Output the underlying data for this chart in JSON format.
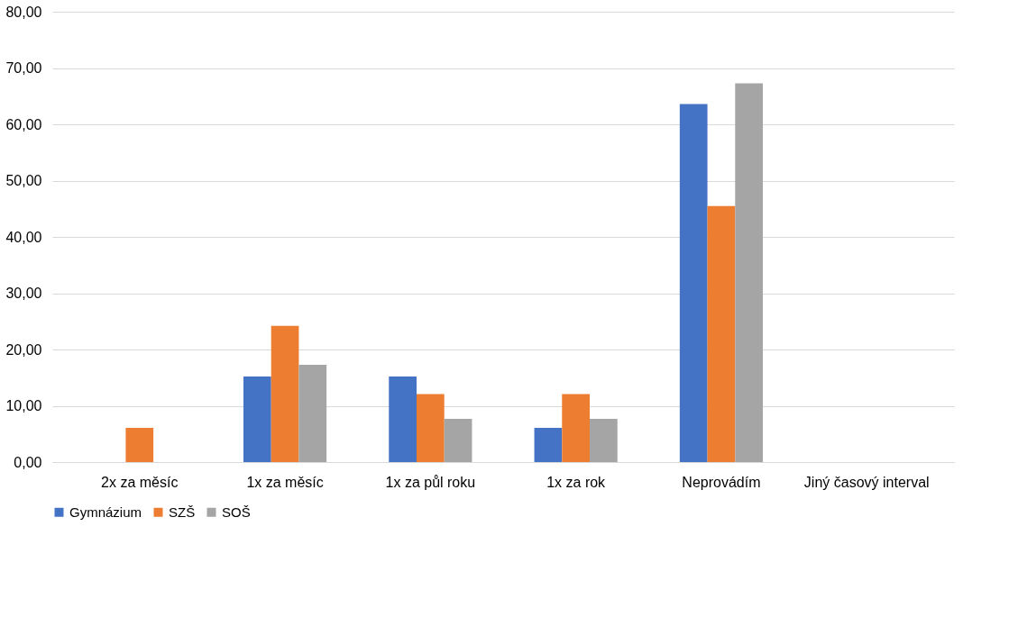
{
  "chart_data": {
    "type": "bar",
    "categories": [
      "2x za měsíc",
      "1x za měsíc",
      "1x za půl roku",
      "1x za rok",
      "Neprovádím",
      "Jiný časový interval"
    ],
    "series": [
      {
        "name": "Gymnázium",
        "color": "#4472c4",
        "values": [
          0,
          15.2,
          15.2,
          6.1,
          63.6,
          0
        ]
      },
      {
        "name": "SZŠ",
        "color": "#ed7d31",
        "values": [
          6.1,
          24.2,
          12.1,
          12.1,
          45.5,
          0
        ]
      },
      {
        "name": "SOŠ",
        "color": "#a5a5a5",
        "values": [
          0,
          17.3,
          7.7,
          7.7,
          67.3,
          0
        ]
      }
    ],
    "ylim": [
      0,
      80
    ],
    "yticks": [
      {
        "value": 0,
        "label": "0,00"
      },
      {
        "value": 10,
        "label": "10,00"
      },
      {
        "value": 20,
        "label": "20,00"
      },
      {
        "value": 30,
        "label": "30,00"
      },
      {
        "value": 40,
        "label": "40,00"
      },
      {
        "value": 50,
        "label": "50,00"
      },
      {
        "value": 60,
        "label": "60,00"
      },
      {
        "value": 70,
        "label": "70,00"
      },
      {
        "value": 80,
        "label": "80,00"
      }
    ],
    "grid": "y",
    "legend": "bottom"
  }
}
